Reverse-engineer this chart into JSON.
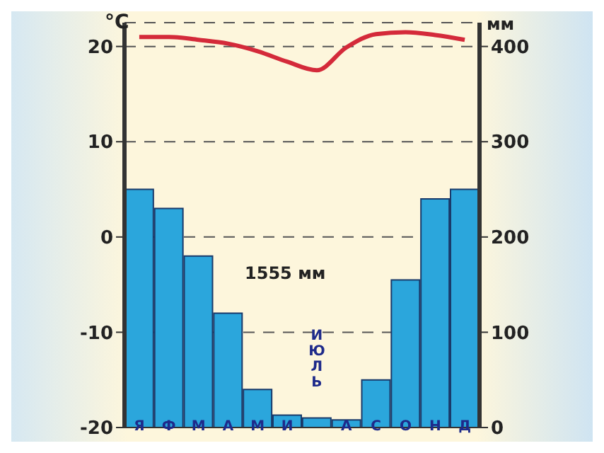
{
  "chart_data": {
    "type": "bar",
    "ylabel": "°C",
    "y2label": "мм",
    "categories": [
      "Я",
      "Ф",
      "М",
      "А",
      "М",
      "И",
      "ИЮЛЬ",
      "А",
      "С",
      "О",
      "Н",
      "Д"
    ],
    "series": [
      {
        "axis": "y2",
        "color": "#2ba6dc",
        "values": [
          250,
          230,
          180,
          120,
          40,
          13,
          10,
          8,
          50,
          155,
          240,
          250
        ]
      },
      {
        "type": "line",
        "axis": "y",
        "color": "#d42a3a",
        "values": [
          21,
          21,
          20.7,
          20.3,
          19.5,
          18.4,
          17.5,
          19.9,
          21.3,
          21.5,
          21.2,
          20.7
        ]
      }
    ],
    "ylim": [
      -20,
      22.5
    ],
    "yticks": [
      -20,
      -10,
      0,
      10,
      20
    ],
    "y2lim": [
      0,
      425
    ],
    "y2ticks": [
      0,
      100,
      200,
      300,
      400
    ],
    "grid": "y",
    "marker": "none",
    "line_style": "solid",
    "annotations": [
      "1555 мм"
    ]
  }
}
